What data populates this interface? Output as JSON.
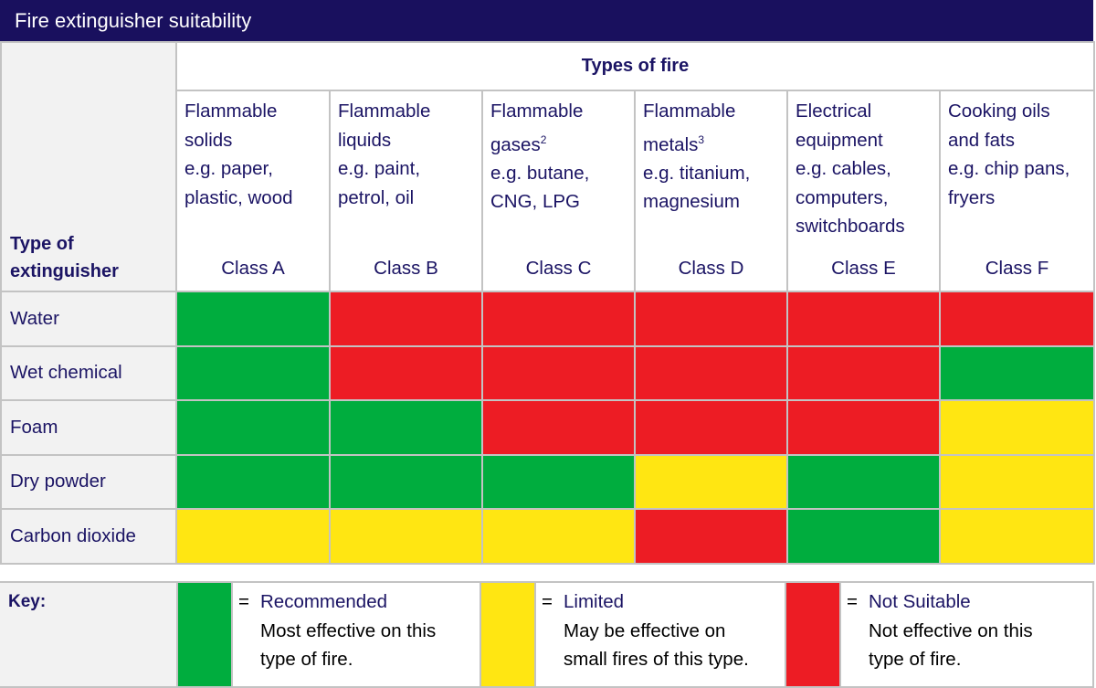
{
  "title": "Fire extinguisher suitability",
  "header": {
    "corner_label": "Type of extinguisher",
    "types_label": "Types of fire"
  },
  "colors": {
    "recommended": "#00ad3e",
    "limited": "#ffe612",
    "not_suitable": "#ed1c24",
    "title_bg": "#19105e",
    "text": "#1b1464"
  },
  "fire_types": [
    {
      "line1": "Flammable",
      "line2": "solids",
      "note": "",
      "examples": "e.g. paper,\nplastic, wood",
      "class": "Class A"
    },
    {
      "line1": "Flammable",
      "line2": "liquids",
      "note": "",
      "examples": "e.g. paint,\npetrol, oil",
      "class": "Class B"
    },
    {
      "line1": "Flammable",
      "line2": "gases",
      "note": "2",
      "examples": "e.g. butane,\nCNG, LPG",
      "class": "Class C"
    },
    {
      "line1": "Flammable",
      "line2": "metals",
      "note": "3",
      "examples": "e.g. titanium,\nmagnesium",
      "class": "Class D"
    },
    {
      "line1": "Electrical",
      "line2": "equipment",
      "note": "",
      "examples": "e.g. cables,\ncomputers,\nswitchboards",
      "class": "Class E"
    },
    {
      "line1": "Cooking oils",
      "line2": "and fats",
      "note": "",
      "examples": "e.g. chip pans,\nfryers",
      "class": "Class F"
    }
  ],
  "extinguishers": [
    {
      "name": "Water",
      "suitability": [
        "recommended",
        "not_suitable",
        "not_suitable",
        "not_suitable",
        "not_suitable",
        "not_suitable"
      ]
    },
    {
      "name": "Wet chemical",
      "suitability": [
        "recommended",
        "not_suitable",
        "not_suitable",
        "not_suitable",
        "not_suitable",
        "recommended"
      ]
    },
    {
      "name": "Foam",
      "suitability": [
        "recommended",
        "recommended",
        "not_suitable",
        "not_suitable",
        "not_suitable",
        "limited"
      ]
    },
    {
      "name": "Dry powder",
      "suitability": [
        "recommended",
        "recommended",
        "recommended",
        "limited",
        "recommended",
        "limited"
      ]
    },
    {
      "name": "Carbon dioxide",
      "suitability": [
        "limited",
        "limited",
        "limited",
        "not_suitable",
        "recommended",
        "limited"
      ]
    }
  ],
  "key": {
    "label": "Key:",
    "items": [
      {
        "level": "recommended",
        "eq": "=",
        "name": "Recommended",
        "desc": "Most effective on this\ntype of fire."
      },
      {
        "level": "limited",
        "eq": "=",
        "name": "Limited",
        "desc": "May be effective on\nsmall fires of this type."
      },
      {
        "level": "not_suitable",
        "eq": "=",
        "name": "Not Suitable",
        "desc": "Not effective on this\ntype of fire."
      }
    ]
  }
}
